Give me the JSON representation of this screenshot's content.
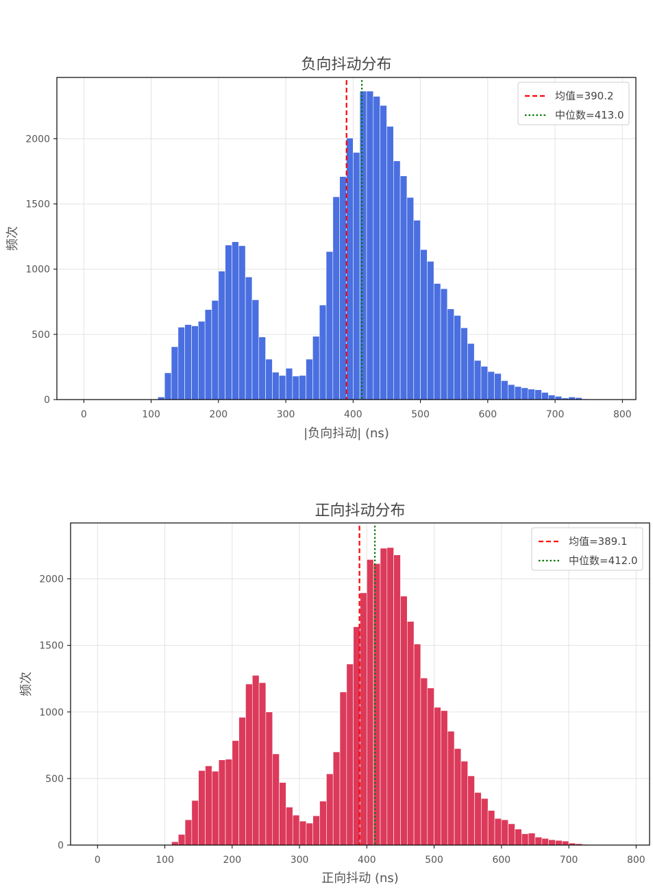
{
  "chart_data": [
    {
      "type": "bar",
      "title": "负向抖动分布",
      "xlabel": "|负向抖动| (ns)",
      "ylabel": "频次",
      "xlim": [
        -40,
        820
      ],
      "ylim": [
        0,
        2470
      ],
      "xticks": [
        0,
        100,
        200,
        300,
        400,
        500,
        600,
        700,
        800
      ],
      "yticks": [
        0,
        500,
        1000,
        1500,
        2000
      ],
      "bar_color": "#4a6fe0",
      "bin_start": 110,
      "bin_width": 10,
      "values": [
        20,
        205,
        405,
        555,
        575,
        565,
        600,
        690,
        760,
        985,
        1185,
        1210,
        1180,
        940,
        765,
        480,
        310,
        210,
        185,
        240,
        180,
        185,
        310,
        485,
        725,
        1135,
        1555,
        1710,
        2005,
        1895,
        2365,
        2365,
        2325,
        2255,
        2095,
        1830,
        1715,
        1550,
        1375,
        1150,
        1060,
        890,
        850,
        695,
        645,
        550,
        430,
        300,
        255,
        215,
        200,
        145,
        115,
        100,
        90,
        80,
        75,
        55,
        35,
        25,
        12,
        20,
        15,
        5,
        2,
        1,
        1,
        0,
        0,
        0
      ],
      "grid": true,
      "legend_position": "top-right",
      "lines": [
        {
          "label": "均值=390.2",
          "x": 390.2,
          "color": "#ff0000",
          "style": "dashed"
        },
        {
          "label": "中位数=413.0",
          "x": 413.0,
          "color": "#007700",
          "style": "dotted"
        }
      ]
    },
    {
      "type": "bar",
      "title": "正向抖动分布",
      "xlabel": "正向抖动 (ns)",
      "ylabel": "频次",
      "xlim": [
        -40,
        820
      ],
      "ylim": [
        0,
        2420
      ],
      "xticks": [
        0,
        100,
        200,
        300,
        400,
        500,
        600,
        700,
        800
      ],
      "yticks": [
        0,
        500,
        1000,
        1500,
        2000
      ],
      "bar_color": "#dc3a5a",
      "bin_start": 110,
      "bin_width": 10,
      "values": [
        25,
        80,
        190,
        335,
        560,
        595,
        555,
        640,
        645,
        785,
        960,
        1210,
        1275,
        1220,
        1000,
        685,
        470,
        285,
        225,
        180,
        165,
        220,
        330,
        535,
        700,
        1150,
        1360,
        1640,
        1895,
        2145,
        2115,
        2230,
        2235,
        2180,
        1870,
        1680,
        1510,
        1255,
        1180,
        1035,
        1010,
        855,
        725,
        630,
        520,
        395,
        350,
        260,
        200,
        190,
        160,
        120,
        85,
        90,
        60,
        50,
        40,
        35,
        30,
        15,
        10,
        5,
        2,
        1,
        0,
        0,
        0
      ],
      "grid": true,
      "legend_position": "top-right",
      "lines": [
        {
          "label": "均值=389.1",
          "x": 389.1,
          "color": "#ff0000",
          "style": "dashed"
        },
        {
          "label": "中位数=412.0",
          "x": 412.0,
          "color": "#007700",
          "style": "dotted"
        }
      ]
    }
  ]
}
